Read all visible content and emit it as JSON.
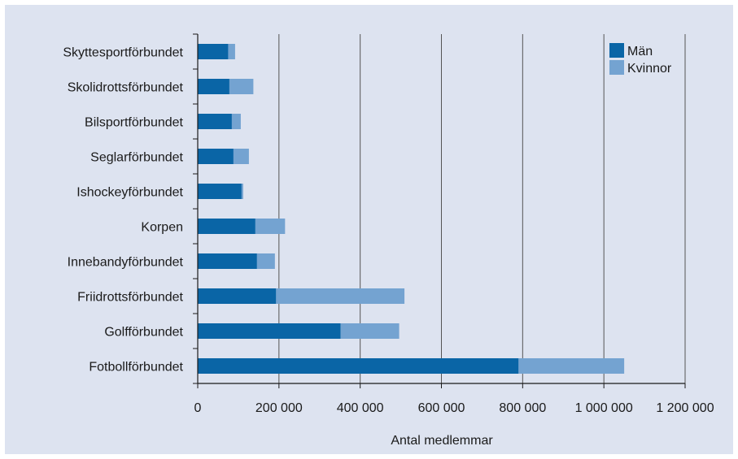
{
  "chart_data": {
    "type": "bar",
    "orientation": "horizontal",
    "stacked": true,
    "categories": [
      "Skyttesportförbundet",
      "Skolidrottsförbundet",
      "Bilsportförbundet",
      "Seglarförbundet",
      "Ishockeyförbundet",
      "Korpen",
      "Innebandyförbundet",
      "Friidrottsförbundet",
      "Golfförbundet",
      "Fotbollförbundet"
    ],
    "series": [
      {
        "name": "Män",
        "color": "#0a65a6",
        "values": [
          75000,
          78000,
          84000,
          88000,
          108000,
          142000,
          146000,
          193000,
          352000,
          790000
        ]
      },
      {
        "name": "Kvinnor",
        "color": "#74a3d1",
        "values": [
          17000,
          59000,
          22000,
          38000,
          4000,
          73000,
          44000,
          316000,
          144000,
          260000
        ]
      }
    ],
    "xlabel": "Antal medlemmar",
    "ylabel": "",
    "title": "",
    "xlim": [
      0,
      1200000
    ],
    "xticks": [
      0,
      200000,
      400000,
      600000,
      800000,
      1000000,
      1200000
    ],
    "xtick_labels": [
      "0",
      "200 000",
      "400 000",
      "600 000",
      "800 000",
      "1 000 000",
      "1 200 000"
    ],
    "grid": "vertical",
    "legend_position": "top-right",
    "background_color": "#dde3f0",
    "axis_color": "#1a1a1a",
    "gridline_color": "#555555"
  }
}
